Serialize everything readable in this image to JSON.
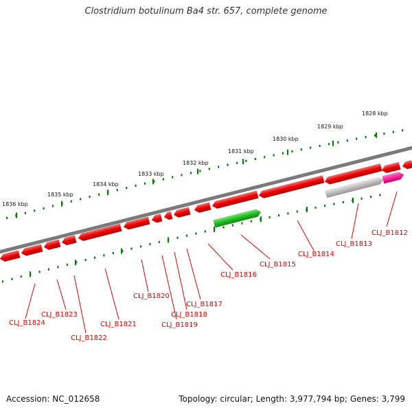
{
  "title": "Clostridium botulinum Ba4 str. 657, complete genome",
  "footer": {
    "accession": "Accession: NC_012658",
    "summary": "Topology: circular; Length: 3,977,794 bp; Genes: 3,799"
  },
  "colors": {
    "backbone": "#7a7a7a",
    "gene_red": "#ee0000",
    "gene_green": "#22bb22",
    "gene_gray": "#bbbbbb",
    "gene_pink": "#ff2299",
    "tick": "#117711",
    "label": "#dd0000"
  },
  "scale_labels": [
    "1828 kbp",
    "1829 kbp",
    "1830 kbp",
    "1831 kbp",
    "1832 kbp",
    "1833 kbp",
    "1834 kbp",
    "1835 kbp",
    "1836 kbp"
  ],
  "gene_labels": [
    "CLJ_B1812",
    "CLJ_B1813",
    "CLJ_B1814",
    "CLJ_B1815",
    "CLJ_B1816",
    "CLJ_B1817",
    "CLJ_B1818",
    "CLJ_B1819",
    "CLJ_B1820",
    "CLJ_B1821",
    "CLJ_B1822",
    "CLJ_B1823",
    "CLJ_B1824"
  ]
}
